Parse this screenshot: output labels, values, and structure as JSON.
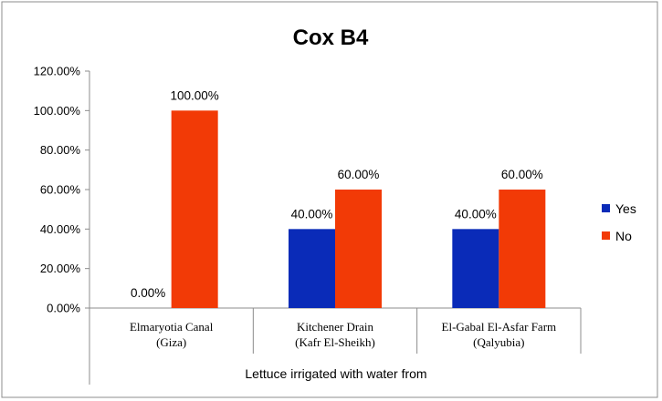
{
  "chart_data": {
    "type": "bar",
    "title": "Cox B4",
    "xlabel": "Lettuce irrigated with water from",
    "ylabel": "",
    "ylim": [
      0,
      120
    ],
    "yticks": [
      "0.00%",
      "20.00%",
      "40.00%",
      "60.00%",
      "80.00%",
      "100.00%",
      "120.00%"
    ],
    "ytick_values": [
      0,
      20,
      40,
      60,
      80,
      100,
      120
    ],
    "categories": [
      [
        "Elmaryotia Canal",
        "(Giza)"
      ],
      [
        "Kitchener Drain",
        "(Kafr El-Sheikh)"
      ],
      [
        "El-Gabal El-Asfar Farm",
        "(Qalyubia)"
      ]
    ],
    "series": [
      {
        "name": "Yes",
        "color": "#0A2BB8",
        "values": [
          0,
          40,
          40
        ],
        "labels": [
          "0.00%",
          "40.00%",
          "40.00%"
        ]
      },
      {
        "name": "No",
        "color": "#F23A06",
        "values": [
          100,
          60,
          60
        ],
        "labels": [
          "100.00%",
          "60.00%",
          "60.00%"
        ]
      }
    ],
    "grid": false,
    "legend_position": "right"
  }
}
